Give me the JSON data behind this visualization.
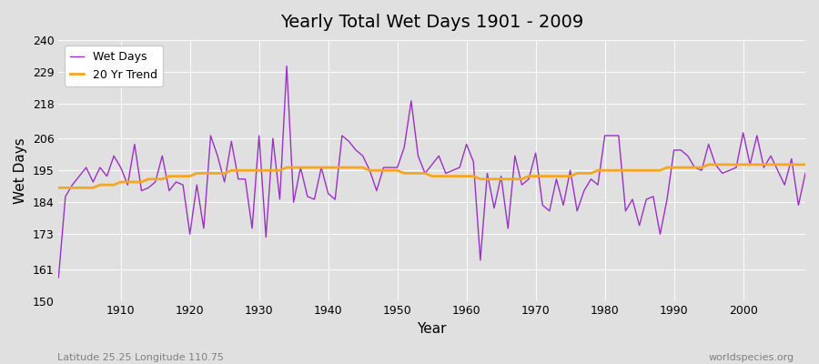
{
  "title": "Yearly Total Wet Days 1901 - 2009",
  "xlabel": "Year",
  "ylabel": "Wet Days",
  "xlim": [
    1901,
    2009
  ],
  "ylim": [
    150,
    240
  ],
  "yticks": [
    150,
    161,
    173,
    184,
    195,
    206,
    218,
    229,
    240
  ],
  "xticks": [
    1910,
    1920,
    1930,
    1940,
    1950,
    1960,
    1970,
    1980,
    1990,
    2000
  ],
  "background_color": "#e0e0e0",
  "plot_bg_color": "#e0e0e0",
  "wet_days_color": "#9b30c8",
  "trend_color": "#f5a623",
  "wet_days_label": "Wet Days",
  "trend_label": "20 Yr Trend",
  "footer_left": "Latitude 25.25 Longitude 110.75",
  "footer_right": "worldspecies.org",
  "years": [
    1901,
    1902,
    1903,
    1904,
    1905,
    1906,
    1907,
    1908,
    1909,
    1910,
    1911,
    1912,
    1913,
    1914,
    1915,
    1916,
    1917,
    1918,
    1919,
    1920,
    1921,
    1922,
    1923,
    1924,
    1925,
    1926,
    1927,
    1928,
    1929,
    1930,
    1931,
    1932,
    1933,
    1934,
    1935,
    1936,
    1937,
    1938,
    1939,
    1940,
    1941,
    1942,
    1943,
    1944,
    1945,
    1946,
    1947,
    1948,
    1949,
    1950,
    1951,
    1952,
    1953,
    1954,
    1955,
    1956,
    1957,
    1958,
    1959,
    1960,
    1961,
    1962,
    1963,
    1964,
    1965,
    1966,
    1967,
    1968,
    1969,
    1970,
    1971,
    1972,
    1973,
    1974,
    1975,
    1976,
    1977,
    1978,
    1979,
    1980,
    1981,
    1982,
    1983,
    1984,
    1985,
    1986,
    1987,
    1988,
    1989,
    1990,
    1991,
    1992,
    1993,
    1994,
    1995,
    1996,
    1997,
    1998,
    1999,
    2000,
    2001,
    2002,
    2003,
    2004,
    2005,
    2006,
    2007,
    2008,
    2009
  ],
  "wet_days": [
    158,
    186,
    190,
    193,
    196,
    191,
    196,
    193,
    200,
    196,
    190,
    204,
    188,
    189,
    191,
    200,
    188,
    191,
    190,
    173,
    190,
    175,
    207,
    200,
    191,
    205,
    192,
    192,
    175,
    207,
    172,
    206,
    185,
    231,
    184,
    196,
    186,
    185,
    196,
    187,
    185,
    207,
    205,
    202,
    200,
    195,
    188,
    196,
    196,
    196,
    203,
    219,
    200,
    194,
    197,
    200,
    194,
    195,
    196,
    204,
    198,
    164,
    194,
    182,
    193,
    175,
    200,
    190,
    192,
    201,
    183,
    181,
    192,
    183,
    195,
    181,
    188,
    192,
    190,
    207,
    207,
    207,
    181,
    185,
    176,
    185,
    186,
    173,
    185,
    202,
    202,
    200,
    196,
    195,
    204,
    197,
    194,
    195,
    196,
    208,
    197,
    207,
    196,
    200,
    195,
    190,
    199,
    183,
    194
  ],
  "trend_years": [
    1901,
    1902,
    1903,
    1904,
    1905,
    1906,
    1907,
    1908,
    1909,
    1910,
    1911,
    1912,
    1913,
    1914,
    1915,
    1916,
    1917,
    1918,
    1919,
    1920,
    1921,
    1922,
    1923,
    1924,
    1925,
    1926,
    1927,
    1928,
    1929,
    1930,
    1931,
    1932,
    1933,
    1934,
    1935,
    1936,
    1937,
    1938,
    1939,
    1940,
    1941,
    1942,
    1943,
    1944,
    1945,
    1946,
    1947,
    1948,
    1949,
    1950,
    1951,
    1952,
    1953,
    1954,
    1955,
    1956,
    1957,
    1958,
    1959,
    1960,
    1961,
    1962,
    1963,
    1964,
    1965,
    1966,
    1967,
    1968,
    1969,
    1970,
    1971,
    1972,
    1973,
    1974,
    1975,
    1976,
    1977,
    1978,
    1979,
    1980,
    1981,
    1982,
    1983,
    1984,
    1985,
    1986,
    1987,
    1988,
    1989,
    1990,
    1991,
    1992,
    1993,
    1994,
    1995,
    1996,
    1997,
    1998,
    1999,
    2000,
    2001,
    2002,
    2003,
    2004,
    2005,
    2006,
    2007,
    2008,
    2009
  ],
  "trend_values": [
    189,
    189,
    189,
    189,
    189,
    189,
    190,
    190,
    190,
    191,
    191,
    191,
    191,
    192,
    192,
    192,
    193,
    193,
    193,
    193,
    194,
    194,
    194,
    194,
    194,
    195,
    195,
    195,
    195,
    195,
    195,
    195,
    195,
    196,
    196,
    196,
    196,
    196,
    196,
    196,
    196,
    196,
    196,
    196,
    196,
    195,
    195,
    195,
    195,
    195,
    194,
    194,
    194,
    194,
    193,
    193,
    193,
    193,
    193,
    193,
    193,
    192,
    192,
    192,
    192,
    192,
    192,
    192,
    193,
    193,
    193,
    193,
    193,
    193,
    193,
    194,
    194,
    194,
    195,
    195,
    195,
    195,
    195,
    195,
    195,
    195,
    195,
    195,
    196,
    196,
    196,
    196,
    196,
    196,
    197,
    197,
    197,
    197,
    197,
    197,
    197,
    197,
    197,
    197,
    197,
    197,
    197,
    197,
    197
  ]
}
